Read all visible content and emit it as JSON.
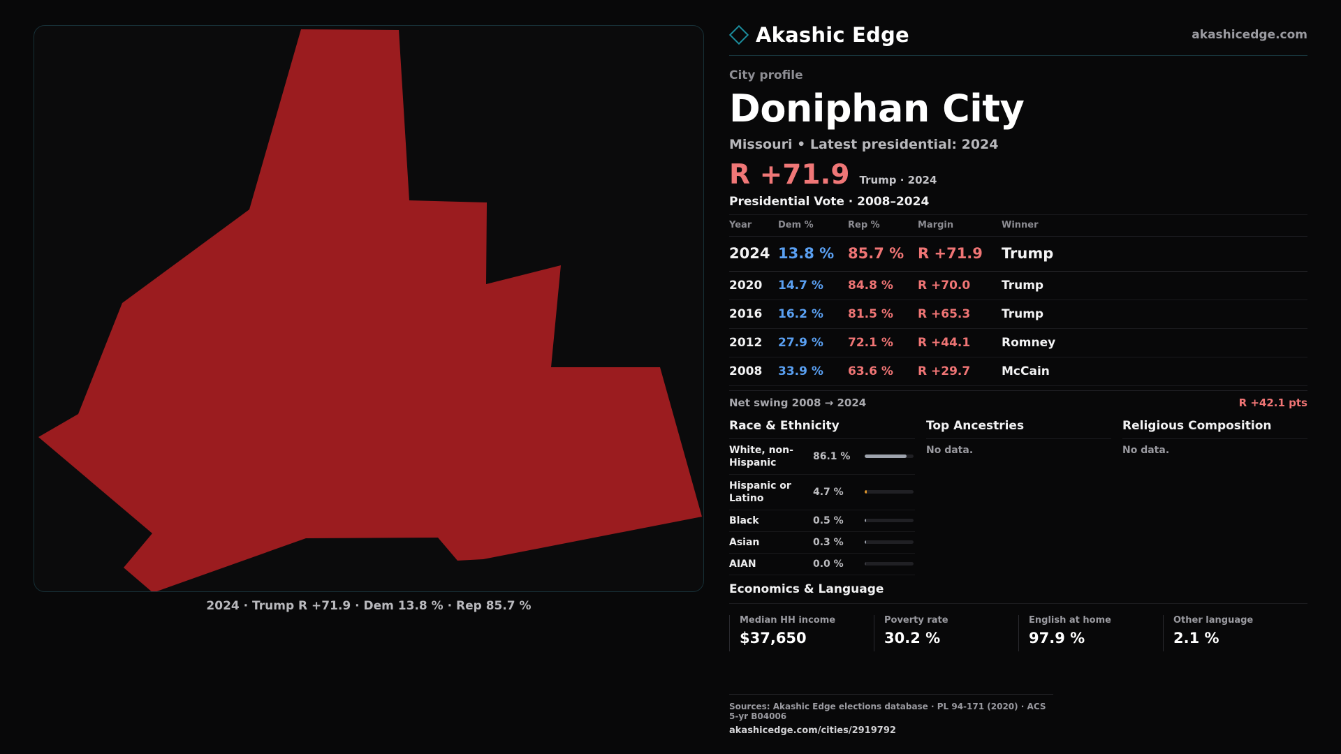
{
  "map": {
    "fill_color": "#9b1c1f",
    "caption": "2024 · Trump R +71.9 · Dem 13.8 % · Rep 85.7 %"
  },
  "brand": {
    "name": "Akashic Edge",
    "url": "akashicedge.com",
    "accent": "#1c8f9f"
  },
  "profile": {
    "kicker": "City profile",
    "title": "Doniphan City",
    "subtitle": "Missouri • Latest presidential: 2024",
    "headline_margin": "R +71.9",
    "headline_note": "Trump · 2024"
  },
  "votes": {
    "title": "Presidential Vote · 2008–2024",
    "headers": {
      "year": "Year",
      "dem": "Dem %",
      "rep": "Rep %",
      "margin": "Margin",
      "winner": "Winner"
    },
    "rows": [
      {
        "year": "2024",
        "dem": "13.8 %",
        "rep": "85.7 %",
        "margin": "R +71.9",
        "winner": "Trump"
      },
      {
        "year": "2020",
        "dem": "14.7 %",
        "rep": "84.8 %",
        "margin": "R +70.0",
        "winner": "Trump"
      },
      {
        "year": "2016",
        "dem": "16.2 %",
        "rep": "81.5 %",
        "margin": "R +65.3",
        "winner": "Trump"
      },
      {
        "year": "2012",
        "dem": "27.9 %",
        "rep": "72.1 %",
        "margin": "R +44.1",
        "winner": "Romney"
      },
      {
        "year": "2008",
        "dem": "33.9 %",
        "rep": "63.6 %",
        "margin": "R +29.7",
        "winner": "McCain"
      }
    ],
    "swing_label": "Net swing 2008 → 2024",
    "swing_value": "R +42.1 pts"
  },
  "race": {
    "title": "Race & Ethnicity",
    "items": [
      {
        "label": "White, non-Hispanic",
        "value": "86.1 %",
        "share": 0.861,
        "color": "#9ea3ad"
      },
      {
        "label": "Hispanic or Latino",
        "value": "4.7 %",
        "share": 0.047,
        "color": "#e0962b"
      },
      {
        "label": "Black",
        "value": "0.5 %",
        "share": 0.005,
        "color": "#9ea3ad"
      },
      {
        "label": "Asian",
        "value": "0.3 %",
        "share": 0.003,
        "color": "#9ea3ad"
      },
      {
        "label": "AIAN",
        "value": "0.0 %",
        "share": 0.0,
        "color": "#9ea3ad"
      }
    ]
  },
  "ancestries": {
    "title": "Top Ancestries",
    "empty": "No data."
  },
  "religion": {
    "title": "Religious Composition",
    "empty": "No data."
  },
  "economics": {
    "title": "Economics & Language",
    "cells": [
      {
        "label": "Median HH income",
        "value": "$37,650"
      },
      {
        "label": "Poverty rate",
        "value": "30.2 %"
      },
      {
        "label": "English at home",
        "value": "97.9 %"
      },
      {
        "label": "Other language",
        "value": "2.1 %"
      }
    ]
  },
  "sources": {
    "line": "Sources: Akashic Edge elections database · PL 94-171 (2020) · ACS 5-yr B04006",
    "url": "akashicedge.com/cities/2919792"
  }
}
